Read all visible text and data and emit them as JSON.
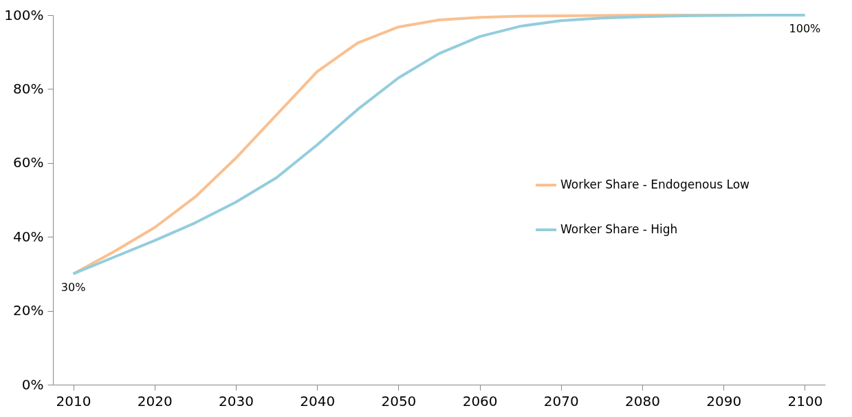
{
  "chart_data": {
    "type": "line",
    "x": [
      2010,
      2015,
      2020,
      2025,
      2030,
      2035,
      2040,
      2045,
      2050,
      2055,
      2060,
      2065,
      2070,
      2075,
      2080,
      2085,
      2090,
      2095,
      2100
    ],
    "series": [
      {
        "name": "Worker Share - Endogenous Low",
        "color": "#fac090",
        "values": [
          30,
          36,
          42.5,
          50.8,
          61.3,
          73,
          84.7,
          92.5,
          96.8,
          98.7,
          99.4,
          99.7,
          99.8,
          99.9,
          100,
          100,
          100,
          100,
          100
        ]
      },
      {
        "name": "Worker Share - High",
        "color": "#93cddd",
        "values": [
          30,
          34.5,
          39,
          43.8,
          49.4,
          56,
          64.9,
          74.5,
          83,
          89.6,
          94.2,
          97,
          98.5,
          99.2,
          99.6,
          99.8,
          99.9,
          100,
          100
        ]
      }
    ],
    "xlim": [
      2007.5,
      2102.5
    ],
    "xticks": [
      2010,
      2020,
      2030,
      2040,
      2050,
      2060,
      2070,
      2080,
      2090,
      2100
    ],
    "ylim": [
      0,
      100
    ],
    "yticks": [
      {
        "value": 0,
        "label": "0%"
      },
      {
        "value": 20,
        "label": "20%"
      },
      {
        "value": 40,
        "label": "40%"
      },
      {
        "value": 60,
        "label": "60%"
      },
      {
        "value": 80,
        "label": "80%"
      },
      {
        "value": 100,
        "label": "100%"
      }
    ],
    "annotations": [
      {
        "text": "30%",
        "x": 2010,
        "y": 30
      },
      {
        "text": "100%",
        "x": 2100,
        "y": 100
      }
    ],
    "grid": false,
    "legend": "right",
    "marker": "none",
    "line_style": "solid"
  }
}
